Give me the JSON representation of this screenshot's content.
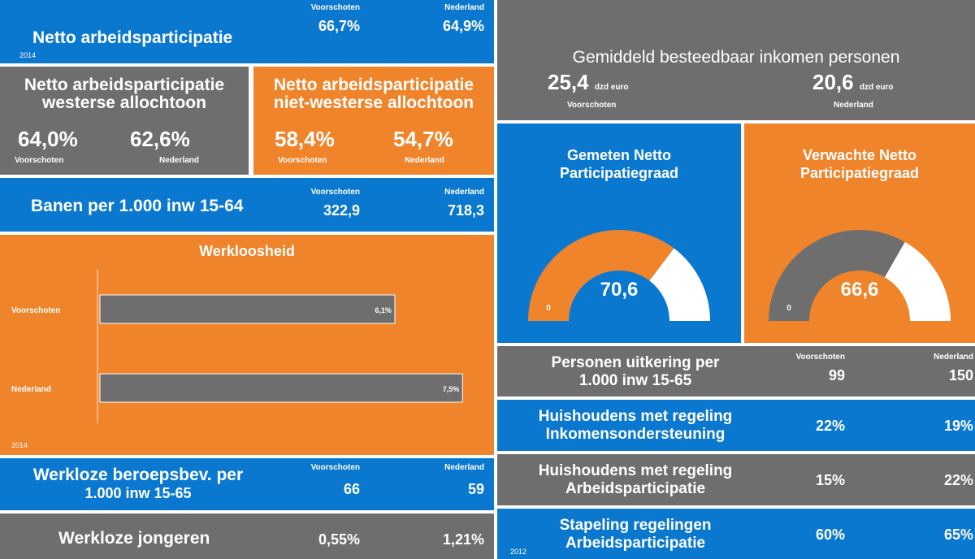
{
  "left": [
    {
      "title": "Netto arbeidsparticipatie",
      "year": "2014",
      "labels": [
        "Voorschoten",
        "Nederland"
      ],
      "values": [
        "66,7%",
        "64,9%"
      ]
    },
    {
      "title_lines": [
        "Netto arbeidsparticipatie",
        "westerse allochtoon"
      ],
      "labels": [
        "Voorschoten",
        "Nederland"
      ],
      "values": [
        "64,0%",
        "62,6%"
      ]
    },
    {
      "title_lines": [
        "Netto arbeidsparticipatie",
        "niet-westerse allochtoon"
      ],
      "labels": [
        "Voorschoten",
        "Nederland"
      ],
      "values": [
        "58,4%",
        "54,7%"
      ]
    },
    {
      "title": "Banen per 1.000 inw 15-64",
      "labels": [
        "Voorschoten",
        "Nederland"
      ],
      "values": [
        "322,9",
        "718,3"
      ]
    },
    {
      "title_lines": [
        "Werkloze beroepsbev. per",
        "1.000 inw 15-65"
      ],
      "labels": [
        "Voorschoten",
        "Nederland"
      ],
      "values": [
        "66",
        "59"
      ]
    },
    {
      "title": "Werkloze jongeren",
      "values": [
        "0,55%",
        "1,21%"
      ]
    }
  ],
  "werkloosheid": {
    "title": "Werkloosheid",
    "year": "2014",
    "categories": [
      "Voorschoten",
      "Nederland"
    ],
    "values": [
      6.1,
      7.5
    ],
    "value_labels": [
      "6,1%",
      "7,5%"
    ]
  },
  "income": {
    "title": "Gemiddeld besteedbaar inkomen personen",
    "values": [
      "25,4",
      "20,6"
    ],
    "unit": "dzd euro",
    "labels": [
      "Voorschoten",
      "Nederland"
    ]
  },
  "gauges": [
    {
      "title_lines": [
        "Gemeten Netto",
        "Participatiegraad"
      ],
      "value": 70.6,
      "value_label": "70,6",
      "min": 0,
      "max": 100
    },
    {
      "title_lines": [
        "Verwachte Netto",
        "Participatiegraad"
      ],
      "value": 66.6,
      "value_label": "66,6",
      "min": 0,
      "max": 100
    }
  ],
  "right": [
    {
      "title_lines": [
        "Personen uitkering per",
        "1.000 inw 15-65"
      ],
      "labels": [
        "Voorschoten",
        "Nederland"
      ],
      "values": [
        "99",
        "150"
      ]
    },
    {
      "title_lines": [
        "Huishoudens met regeling",
        "Inkomensondersteuning"
      ],
      "values": [
        "22%",
        "19%"
      ]
    },
    {
      "title_lines": [
        "Huishoudens met regeling",
        "Arbeidsparticipatie"
      ],
      "values": [
        "15%",
        "22%"
      ]
    },
    {
      "title_lines": [
        "Stapeling regelingen",
        "Arbeidsparticipatie"
      ],
      "year": "2012",
      "values": [
        "60%",
        "65%"
      ]
    }
  ]
}
